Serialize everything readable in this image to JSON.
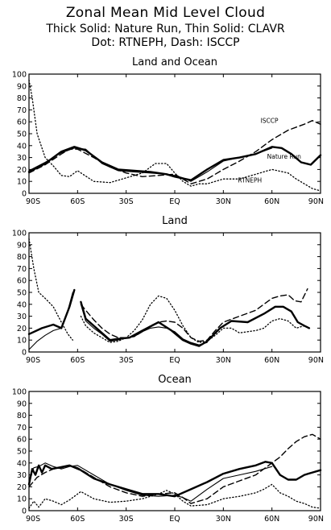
{
  "header": {
    "title": "Zonal Mean Mid Level Cloud",
    "subtitle_line1": "Thick Solid: Nature Run, Thin Solid: CLAVR",
    "subtitle_line2": "Dot: RTNEPH, Dash: ISCCP"
  },
  "chart_data": [
    {
      "type": "line",
      "title": "Land and Ocean",
      "xlim": [
        -90,
        90
      ],
      "ylim": [
        0,
        100
      ],
      "x_ticks": [
        "90S",
        "60S",
        "30S",
        "EQ",
        "30N",
        "60N",
        "90N"
      ],
      "y_ticks": [
        "0",
        "10",
        "20",
        "30",
        "40",
        "50",
        "60",
        "70",
        "80",
        "90",
        "100"
      ],
      "annotations": [
        "ISCCP",
        "Nature Run",
        "RTNEPH"
      ],
      "series": [
        {
          "name": "Nature Run",
          "style": "thick",
          "x": [
            -90,
            -80,
            -70,
            -62,
            -55,
            -45,
            -35,
            -25,
            -15,
            -5,
            0,
            10,
            20,
            30,
            40,
            50,
            60,
            66,
            72,
            78,
            84,
            90
          ],
          "y": [
            18,
            25,
            35,
            39,
            36,
            26,
            20,
            19,
            18,
            16,
            14,
            11,
            20,
            28,
            30,
            33,
            39,
            38,
            33,
            26,
            24,
            32
          ]
        },
        {
          "name": "CLAVR",
          "style": "thin",
          "x": [
            -90,
            -80,
            -70,
            -62,
            -55,
            -45,
            -35,
            -25,
            -15,
            -5,
            0,
            5,
            10,
            20,
            30,
            40,
            50,
            60
          ],
          "y": [
            19,
            26,
            34,
            38,
            37,
            25,
            19,
            18,
            17,
            16,
            15,
            13,
            10,
            18,
            27,
            30,
            33,
            38
          ]
        },
        {
          "name": "RTNEPH",
          "style": "dot",
          "x": [
            -90,
            -88,
            -85,
            -80,
            -75,
            -70,
            -65,
            -60,
            -50,
            -40,
            -30,
            -20,
            -12,
            -5,
            0,
            5,
            10,
            15,
            20,
            30,
            40,
            50,
            60,
            70,
            75,
            80,
            85,
            90
          ],
          "y": [
            95,
            80,
            50,
            30,
            23,
            15,
            14,
            19,
            10,
            9,
            13,
            17,
            25,
            25,
            17,
            10,
            6,
            8,
            8,
            12,
            12,
            16,
            20,
            17,
            12,
            8,
            4,
            2
          ]
        },
        {
          "name": "ISCCP",
          "style": "dash",
          "x": [
            -90,
            -80,
            -70,
            -65,
            -60,
            -50,
            -40,
            -30,
            -20,
            -10,
            0,
            5,
            10,
            20,
            30,
            40,
            50,
            60,
            70,
            80,
            85,
            90
          ],
          "y": [
            17,
            24,
            33,
            37,
            37,
            30,
            22,
            17,
            14,
            15,
            16,
            12,
            8,
            12,
            20,
            27,
            35,
            45,
            53,
            58,
            61,
            58
          ]
        }
      ]
    },
    {
      "type": "line",
      "title": "Land",
      "xlim": [
        -90,
        90
      ],
      "ylim": [
        0,
        100
      ],
      "x_ticks": [
        "90S",
        "60S",
        "30S",
        "EQ",
        "30N",
        "60N",
        "90N"
      ],
      "y_ticks": [
        "0",
        "10",
        "20",
        "30",
        "40",
        "50",
        "60",
        "70",
        "80",
        "90",
        "100"
      ],
      "series": [
        {
          "name": "Nature Run",
          "style": "thick",
          "x": [
            -90,
            -82,
            -75,
            -70,
            -65,
            -62,
            null,
            -58,
            -55,
            -50,
            -45,
            -40,
            -35,
            -28,
            -20,
            -10,
            -2,
            5,
            10,
            15,
            20,
            28,
            35,
            45,
            55,
            62,
            67,
            72,
            76,
            80,
            83
          ],
          "y": [
            15,
            20,
            23,
            20,
            38,
            52,
            null,
            42,
            28,
            22,
            16,
            10,
            11,
            12,
            18,
            25,
            18,
            10,
            7,
            5,
            9,
            20,
            26,
            25,
            32,
            38,
            38,
            34,
            25,
            22,
            20
          ]
        },
        {
          "name": "CLAVR",
          "style": "thin",
          "x": [
            -90,
            -85,
            -80,
            -75,
            -70,
            -66,
            -63,
            null,
            -58,
            -55,
            -50,
            -45,
            -40,
            -35,
            -30,
            -25,
            -20,
            -15,
            -10,
            -5,
            0,
            5,
            10,
            15,
            20
          ],
          "y": [
            2,
            9,
            14,
            18,
            20,
            35,
            50,
            null,
            40,
            26,
            20,
            15,
            9,
            10,
            12,
            13,
            17,
            20,
            21,
            20,
            17,
            11,
            8,
            6,
            8
          ]
        },
        {
          "name": "RTNEPH",
          "style": "dot",
          "x": [
            -90,
            -87,
            -84,
            -80,
            -75,
            -70,
            -66,
            -63,
            null,
            -58,
            -55,
            -50,
            -45,
            -40,
            -35,
            -30,
            -25,
            -20,
            -15,
            -10,
            -5,
            0,
            5,
            10,
            15,
            20,
            25,
            30,
            35,
            40,
            45,
            50,
            55,
            60,
            65,
            70,
            75,
            80
          ],
          "y": [
            95,
            70,
            50,
            45,
            38,
            25,
            15,
            10,
            null,
            30,
            22,
            16,
            12,
            8,
            9,
            12,
            18,
            27,
            40,
            47,
            45,
            35,
            22,
            12,
            8,
            9,
            14,
            20,
            20,
            16,
            17,
            18,
            20,
            26,
            28,
            26,
            20,
            22
          ]
        },
        {
          "name": "ISCCP",
          "style": "dash",
          "x": [
            -58,
            -55,
            -50,
            -45,
            -40,
            -35,
            -30,
            -25,
            -20,
            -15,
            -10,
            -5,
            0,
            5,
            10,
            15,
            20,
            25,
            30,
            40,
            50,
            55,
            60,
            65,
            70,
            74,
            78,
            82
          ],
          "y": [
            40,
            35,
            27,
            20,
            15,
            12,
            12,
            13,
            17,
            22,
            25,
            26,
            25,
            20,
            12,
            9,
            10,
            18,
            25,
            30,
            35,
            40,
            45,
            47,
            48,
            43,
            42,
            53
          ]
        }
      ]
    },
    {
      "type": "line",
      "title": "Ocean",
      "xlim": [
        -90,
        90
      ],
      "ylim": [
        0,
        100
      ],
      "x_ticks": [
        "90S",
        "60S",
        "30S",
        "EQ",
        "30N",
        "60N",
        "90N"
      ],
      "y_ticks": [
        "0",
        "10",
        "20",
        "30",
        "40",
        "50",
        "60",
        "70",
        "80",
        "90",
        "100"
      ],
      "series": [
        {
          "name": "Nature Run",
          "style": "thick",
          "x": [
            -90,
            -88,
            -86,
            -84,
            -82,
            -80,
            -76,
            -72,
            -65,
            -58,
            -50,
            -40,
            -30,
            -20,
            -10,
            0,
            10,
            20,
            30,
            40,
            50,
            56,
            60,
            65,
            70,
            75,
            80,
            85,
            90
          ],
          "y": [
            22,
            35,
            30,
            38,
            32,
            38,
            35,
            36,
            38,
            34,
            27,
            22,
            18,
            14,
            14,
            12,
            18,
            24,
            31,
            35,
            38,
            41,
            40,
            30,
            26,
            26,
            30,
            32,
            34
          ]
        },
        {
          "name": "CLAVR",
          "style": "thin",
          "x": [
            -90,
            -87,
            -84,
            -80,
            -75,
            -70,
            -65,
            -60,
            -50,
            -40,
            -30,
            -20,
            -10,
            0,
            5,
            10,
            20,
            30,
            40,
            50,
            60
          ],
          "y": [
            25,
            36,
            37,
            40,
            37,
            35,
            37,
            38,
            30,
            22,
            17,
            13,
            12,
            13,
            11,
            8,
            18,
            27,
            30,
            33,
            37
          ]
        },
        {
          "name": "RTNEPH",
          "style": "dot",
          "x": [
            -90,
            -87,
            -84,
            -80,
            -75,
            -70,
            -65,
            -58,
            -50,
            -40,
            -30,
            -20,
            -10,
            -5,
            0,
            5,
            10,
            20,
            30,
            40,
            50,
            55,
            60,
            65,
            70,
            75,
            80,
            85,
            90
          ],
          "y": [
            2,
            8,
            3,
            10,
            8,
            5,
            9,
            16,
            10,
            7,
            8,
            10,
            14,
            17,
            14,
            8,
            4,
            5,
            10,
            12,
            15,
            18,
            22,
            15,
            12,
            8,
            6,
            3,
            2
          ]
        },
        {
          "name": "ISCCP",
          "style": "dash",
          "x": [
            -90,
            -85,
            -80,
            -75,
            -70,
            -65,
            -60,
            -50,
            -40,
            -30,
            -20,
            -10,
            0,
            5,
            10,
            20,
            30,
            40,
            50,
            60,
            65,
            70,
            75,
            80,
            85,
            90
          ],
          "y": [
            20,
            28,
            32,
            35,
            36,
            38,
            36,
            28,
            20,
            15,
            12,
            14,
            15,
            11,
            6,
            10,
            20,
            25,
            30,
            40,
            45,
            52,
            58,
            62,
            64,
            60
          ]
        }
      ]
    }
  ]
}
